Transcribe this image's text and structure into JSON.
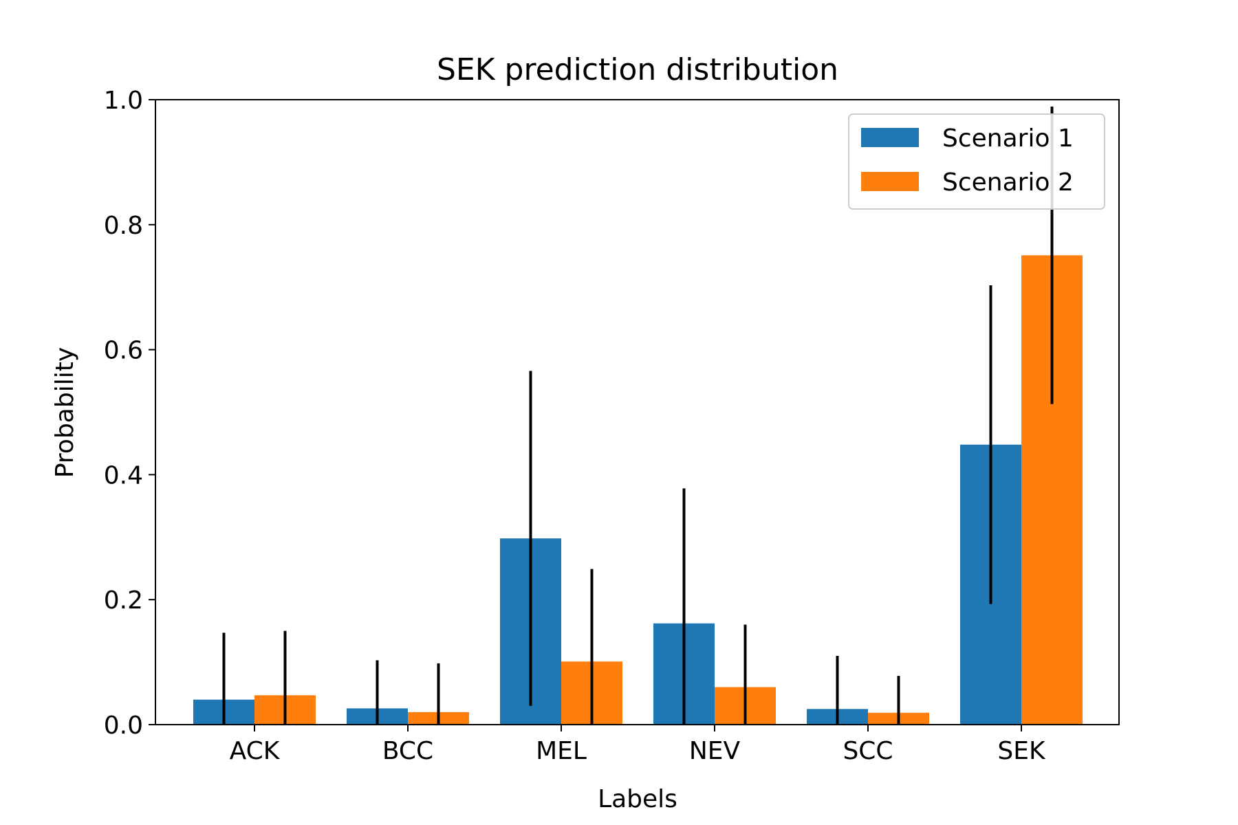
{
  "chart_data": {
    "type": "bar",
    "title": "SEK prediction distribution",
    "xlabel": "Labels",
    "ylabel": "Probability",
    "ylim": [
      0,
      1.0
    ],
    "yticks": [
      "0.0",
      "0.2",
      "0.4",
      "0.6",
      "0.8",
      "1.0"
    ],
    "categories": [
      "ACK",
      "BCC",
      "MEL",
      "NEV",
      "SCC",
      "SEK"
    ],
    "legend_position": "top-right",
    "series": [
      {
        "name": "Scenario 1",
        "color": "#1f77b4",
        "values": [
          0.04,
          0.026,
          0.298,
          0.162,
          0.025,
          0.448
        ],
        "errors": [
          0.107,
          0.077,
          0.268,
          0.216,
          0.085,
          0.255
        ]
      },
      {
        "name": "Scenario 2",
        "color": "#ff7f0e",
        "values": [
          0.047,
          0.02,
          0.101,
          0.06,
          0.019,
          0.751
        ],
        "errors": [
          0.103,
          0.078,
          0.148,
          0.1,
          0.059,
          0.238
        ]
      }
    ]
  }
}
